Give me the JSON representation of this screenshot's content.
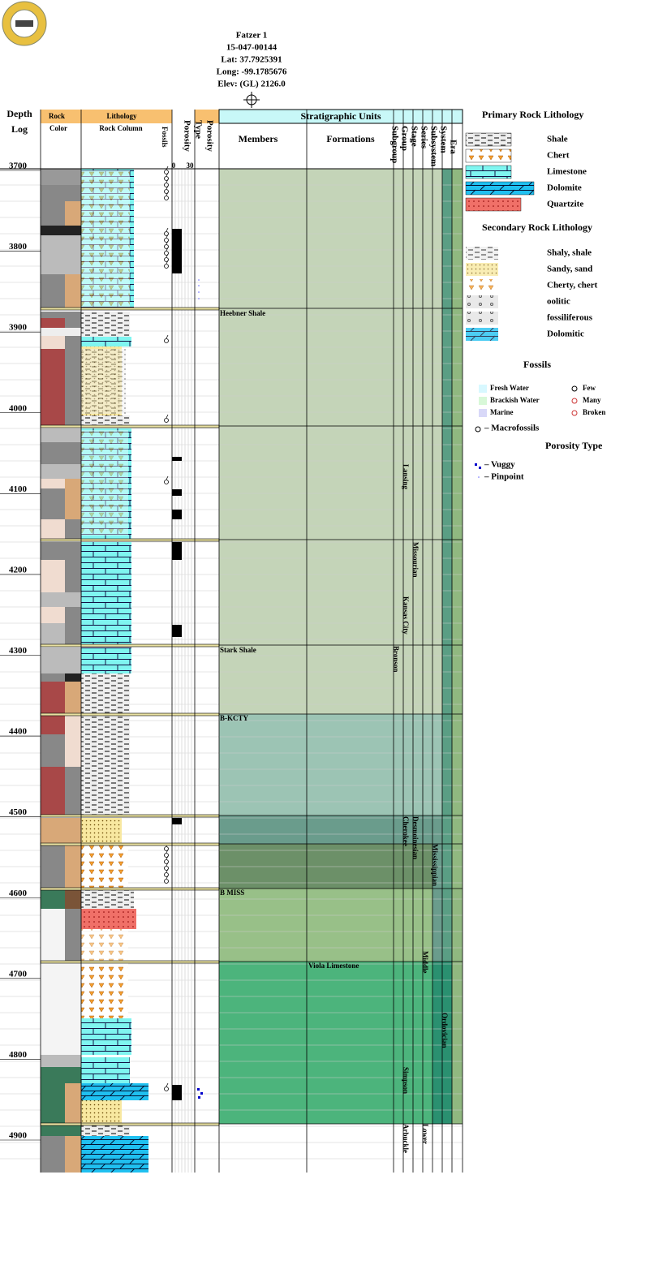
{
  "header": {
    "title": "Fatzer 1",
    "api": "15-047-00144",
    "lat": "Lat: 37.7925391",
    "long": "Long: -99.1785676",
    "elev": "Elev: (GL) 2126.0"
  },
  "columns": {
    "depth": "Depth",
    "log": "Log",
    "rock": "Rock",
    "color": "Color",
    "lithology": "Lithology",
    "rock_column": "Rock Column",
    "fossils": "Fossils",
    "porosity": "Porosity",
    "porosity_min": "0",
    "porosity_max": "30",
    "type": "Type",
    "porosity_type": "Porosity",
    "strat_units": "Stratigraphic Units",
    "members": "Members",
    "formations": "Formations",
    "subgroup": "Subgroup",
    "group": "Group",
    "stage": "Stage",
    "series": "Series",
    "subsystem": "Subsystem",
    "system": "System",
    "era": "Era"
  },
  "depths": [
    3700,
    3800,
    3900,
    4000,
    4100,
    4200,
    4300,
    4400,
    4500,
    4600,
    4700,
    4800,
    4900
  ],
  "units": {
    "members": [
      "Heebner Shale",
      "Stark Shale",
      "B-KCTY",
      "B MISS"
    ],
    "formations": [
      "Viola Limestone"
    ],
    "subgroup": [
      "Lansing",
      "Bronson"
    ],
    "group": [
      "Kansas City",
      "Cherokee",
      "Simpson",
      "Arbuckle"
    ],
    "stage": [
      "Missourian",
      "Desmoinesian"
    ],
    "series": [
      "Middle",
      "Lower"
    ],
    "subsystem": [
      "Mississippian"
    ],
    "system": [
      "Ordovician"
    ]
  },
  "legend": {
    "primary_title": "Primary Rock Lithology",
    "primary": [
      "Shale",
      "Chert",
      "Limestone",
      "Dolomite",
      "Quartzite"
    ],
    "secondary_title": "Secondary Rock Lithology",
    "secondary": [
      "Shaly, shale",
      "Sandy, sand",
      "Cherty, chert",
      "oolitic",
      "fossiliferous",
      "Dolomitic"
    ],
    "fossils_title": "Fossils",
    "fossil_env": [
      "Fresh Water",
      "Brackish Water",
      "Marine"
    ],
    "fossil_abund": [
      "Few",
      "Many",
      "Broken"
    ],
    "macrofossils": "– Macrofossils",
    "porosity_title": "Porosity Type",
    "porosity_types": [
      "– Vuggy",
      "– Pinpoint"
    ]
  }
}
